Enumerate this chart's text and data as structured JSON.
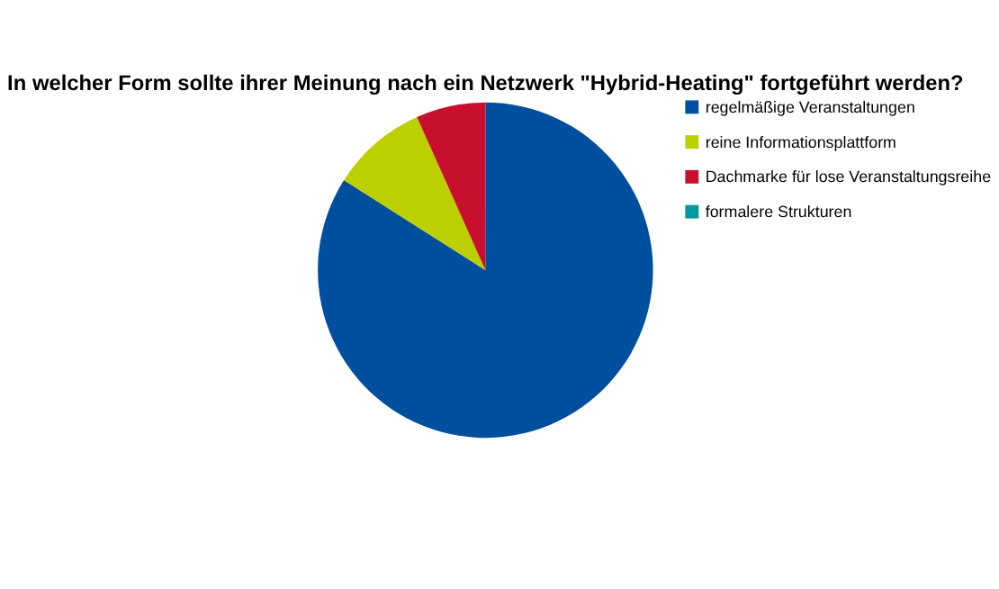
{
  "chart_data": {
    "type": "pie",
    "title": "In welcher Form sollte ihrer Meinung nach ein Netzwerk \"Hybrid-Heating\" fortgeführt werden?",
    "categories": [
      "regelmäßige Veranstaltungen",
      "reine Informationsplattform",
      "Dachmarke für lose Veranstaltungsreihe",
      "formalere Strukturen"
    ],
    "values": [
      84,
      9.3,
      6.7,
      0
    ],
    "colors": [
      "#004f9f",
      "#bccf00",
      "#c8102e",
      "#009999"
    ],
    "legend": "right"
  }
}
